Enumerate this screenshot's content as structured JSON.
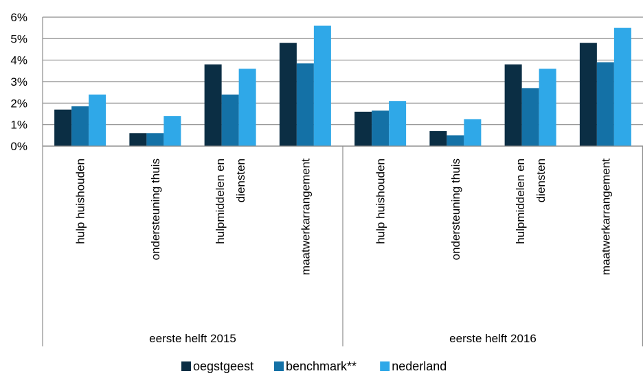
{
  "chart_data": {
    "type": "bar",
    "groups": [
      {
        "label": "eerste helft 2015",
        "categories": [
          "hulp huishouden",
          "ondersteuning thuis",
          "hulpmiddelen en diensten",
          "maatwerkarrangement"
        ]
      },
      {
        "label": "eerste helft 2016",
        "categories": [
          "hulp huishouden",
          "ondersteuning thuis",
          "hulpmiddelen en diensten",
          "maatwerkarrangement"
        ]
      }
    ],
    "category_lines": [
      [
        "hulp huishouden"
      ],
      [
        "ondersteuning thuis"
      ],
      [
        "hulpmiddelen en",
        "diensten"
      ],
      [
        "maatwerkarrangement"
      ],
      [
        "hulp huishouden"
      ],
      [
        "ondersteuning thuis"
      ],
      [
        "hulpmiddelen en",
        "diensten"
      ],
      [
        "maatwerkarrangement"
      ]
    ],
    "series": [
      {
        "name": "oegstgeest",
        "color": "#0b2e44",
        "values": [
          1.7,
          0.6,
          3.8,
          4.8,
          1.6,
          0.7,
          3.8,
          4.8
        ]
      },
      {
        "name": "benchmark**",
        "color": "#1471a6",
        "values": [
          1.85,
          0.6,
          2.4,
          3.85,
          1.65,
          0.5,
          2.7,
          3.9
        ]
      },
      {
        "name": "nederland",
        "color": "#2fa8e8",
        "values": [
          2.4,
          1.4,
          3.6,
          5.6,
          2.1,
          1.25,
          3.6,
          5.5
        ]
      }
    ],
    "ylim": [
      0,
      6
    ],
    "yticks": [
      0,
      1,
      2,
      3,
      4,
      5,
      6
    ],
    "ytick_labels": [
      "0%",
      "1%",
      "2%",
      "3%",
      "4%",
      "5%",
      "6%"
    ],
    "grid": true,
    "legend_position": "bottom",
    "title": "",
    "xlabel": "",
    "ylabel": ""
  }
}
